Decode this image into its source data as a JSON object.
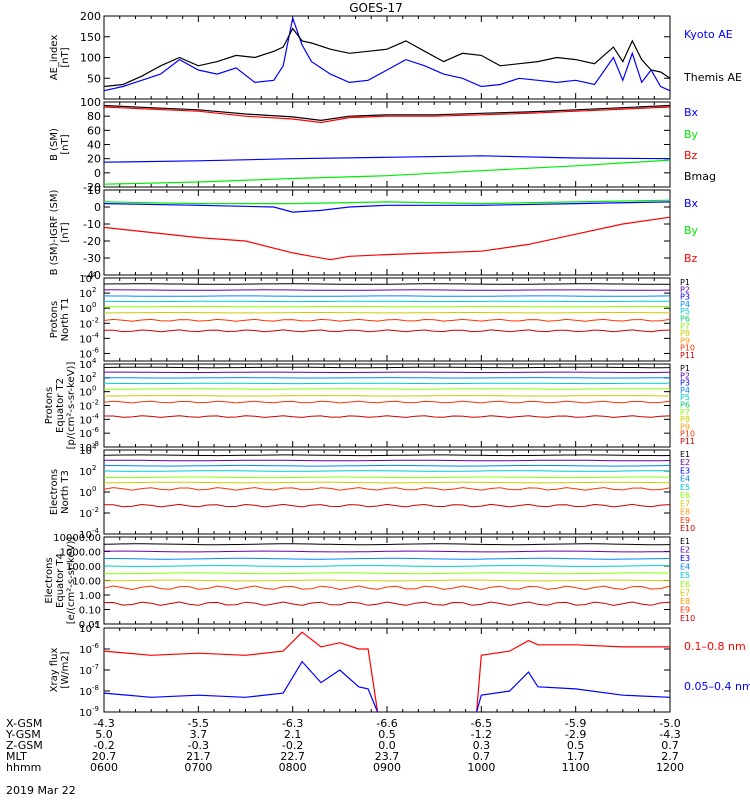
{
  "title": "GOES-17",
  "date": "2019 Mar 22",
  "colors": {
    "black": "#000000",
    "blue": "#0000ff",
    "green": "#00ee00",
    "red": "#ff0000",
    "p_scale": [
      "#000000",
      "#6600aa",
      "#0000ff",
      "#0088ff",
      "#00cccc",
      "#00cc66",
      "#88ff00",
      "#cccc00",
      "#ff9900",
      "#ff3300",
      "#cc0000"
    ]
  },
  "time_axis": {
    "rows": [
      {
        "label": "X-GSM",
        "values": [
          "-4.3",
          "-5.5",
          "-6.3",
          "-6.6",
          "-6.5",
          "-5.9",
          "-5.0"
        ]
      },
      {
        "label": "Y-GSM",
        "values": [
          "5.0",
          "3.7",
          "2.1",
          "0.5",
          "-1.2",
          "-2.9",
          "-4.3"
        ]
      },
      {
        "label": "Z-GSM",
        "values": [
          "-0.2",
          "-0.3",
          "-0.2",
          "0.0",
          "0.3",
          "0.5",
          "0.7"
        ]
      },
      {
        "label": "MLT",
        "values": [
          "20.7",
          "21.7",
          "22.7",
          "23.7",
          "0.7",
          "1.7",
          "2.7"
        ]
      },
      {
        "label": "hhmm",
        "values": [
          "0600",
          "0700",
          "0800",
          "0900",
          "1000",
          "1100",
          "1200"
        ]
      }
    ]
  },
  "chart_data": [
    {
      "type": "line",
      "ylabel": [
        "AE_index",
        "[nT]"
      ],
      "ylim": [
        0,
        200
      ],
      "yticks": [
        "200",
        "150",
        "100",
        "50"
      ],
      "series": [
        {
          "name": "Kyoto AE",
          "color": "#0000ff",
          "x": [
            6.0,
            6.2,
            6.4,
            6.6,
            6.8,
            7.0,
            7.2,
            7.4,
            7.6,
            7.8,
            7.9,
            8.0,
            8.1,
            8.2,
            8.4,
            8.6,
            8.8,
            9.0,
            9.2,
            9.4,
            9.6,
            9.8,
            10.0,
            10.2,
            10.4,
            10.6,
            10.8,
            11.0,
            11.2,
            11.4,
            11.5,
            11.6,
            11.7,
            11.8,
            11.9,
            12.0
          ],
          "y": [
            20,
            30,
            45,
            60,
            95,
            70,
            60,
            75,
            40,
            45,
            80,
            195,
            130,
            90,
            60,
            40,
            45,
            70,
            95,
            80,
            60,
            50,
            30,
            35,
            50,
            45,
            40,
            45,
            35,
            100,
            45,
            110,
            40,
            70,
            30,
            20
          ]
        },
        {
          "name": "Themis AE",
          "color": "#000000",
          "x": [
            6.0,
            6.2,
            6.4,
            6.6,
            6.8,
            7.0,
            7.2,
            7.4,
            7.6,
            7.8,
            7.9,
            8.0,
            8.1,
            8.2,
            8.4,
            8.6,
            8.8,
            9.0,
            9.2,
            9.4,
            9.6,
            9.8,
            10.0,
            10.2,
            10.4,
            10.6,
            10.8,
            11.0,
            11.2,
            11.4,
            11.5,
            11.6,
            11.7,
            11.8,
            11.9,
            12.0
          ],
          "y": [
            30,
            35,
            55,
            80,
            100,
            80,
            90,
            105,
            100,
            115,
            125,
            170,
            140,
            135,
            120,
            110,
            115,
            120,
            140,
            115,
            90,
            110,
            105,
            80,
            85,
            90,
            100,
            95,
            85,
            125,
            90,
            140,
            95,
            70,
            65,
            50
          ]
        }
      ]
    },
    {
      "type": "line",
      "ylabel": [
        "B (SM)",
        "[nT]"
      ],
      "ylim": [
        -20,
        100
      ],
      "yticks": [
        "100",
        "80",
        "60",
        "40",
        "20",
        "0",
        "-20"
      ],
      "series": [
        {
          "name": "Bx",
          "color": "#0000ff",
          "x": [
            6,
            7,
            8,
            9,
            10,
            11,
            12
          ],
          "y": [
            15,
            17,
            20,
            22,
            24,
            21,
            20
          ]
        },
        {
          "name": "By",
          "color": "#00ee00",
          "x": [
            6,
            7,
            8,
            9,
            10,
            11,
            12
          ],
          "y": [
            -16,
            -13,
            -8,
            -4,
            3,
            10,
            18
          ]
        },
        {
          "name": "Bz",
          "color": "#ff0000",
          "x": [
            6,
            6.5,
            7,
            7.5,
            8,
            8.3,
            8.6,
            9,
            9.5,
            10,
            10.5,
            11,
            11.5,
            12
          ],
          "y": [
            93,
            90,
            87,
            80,
            76,
            71,
            78,
            80,
            80,
            82,
            84,
            87,
            90,
            93
          ]
        },
        {
          "name": "Bmag",
          "color": "#000000",
          "x": [
            6,
            6.5,
            7,
            7.5,
            8,
            8.3,
            8.6,
            9,
            9.5,
            10,
            10.5,
            11,
            11.5,
            12
          ],
          "y": [
            95,
            92,
            89,
            83,
            79,
            74,
            80,
            82,
            82,
            84,
            86,
            89,
            92,
            95
          ]
        }
      ]
    },
    {
      "type": "line",
      "ylabel": [
        "B (SM)-IGRF (SM)",
        "[nT]"
      ],
      "ylim": [
        -40,
        10
      ],
      "yticks": [
        "10",
        "0",
        "-10",
        "-20",
        "-30",
        "-40"
      ],
      "series": [
        {
          "name": "Bx",
          "color": "#0000ff",
          "x": [
            6,
            7,
            7.8,
            8,
            8.3,
            8.6,
            9,
            10,
            11,
            12
          ],
          "y": [
            2,
            1,
            0,
            -3,
            -2,
            0,
            1,
            1,
            2,
            3
          ]
        },
        {
          "name": "By",
          "color": "#00ee00",
          "x": [
            6,
            7,
            8,
            9,
            10,
            11,
            12
          ],
          "y": [
            3,
            2,
            2,
            3,
            2,
            3,
            4
          ]
        },
        {
          "name": "Bz",
          "color": "#ff0000",
          "x": [
            6,
            6.5,
            7,
            7.5,
            8,
            8.2,
            8.4,
            8.6,
            9,
            9.5,
            10,
            10.5,
            11,
            11.5,
            12
          ],
          "y": [
            -12,
            -15,
            -18,
            -20,
            -27,
            -29,
            -31,
            -29,
            -28,
            -27,
            -26,
            -22,
            -16,
            -10,
            -6
          ]
        }
      ]
    },
    {
      "type": "line",
      "ylabel": [
        "Protons",
        "North T1"
      ],
      "ylog": true,
      "ylim_exp": [
        -7,
        4
      ],
      "yticks_exp": [
        4,
        2,
        0,
        -2,
        -4,
        -6
      ],
      "legend": [
        "P1",
        "P2",
        "P3",
        "P4",
        "P5",
        "P6",
        "P7",
        "P8",
        "P9",
        "P10",
        "P11"
      ],
      "levels_exp": [
        3.2,
        2.4,
        1.6,
        0.9,
        0.2,
        -0.6,
        -1.6,
        -3.0
      ]
    },
    {
      "type": "line",
      "ylabel": [
        "Protons",
        "Equator T2",
        "[p/(cm²-s-sr-keV)]"
      ],
      "ylog": true,
      "ylim_exp": [
        -8,
        4
      ],
      "yticks_exp": [
        4,
        2,
        0,
        -2,
        -4,
        -6,
        -8
      ],
      "legend": [
        "P1",
        "P2",
        "P3",
        "P4",
        "P5",
        "P6",
        "P7",
        "P8",
        "P9",
        "P10",
        "P11"
      ],
      "levels_exp": [
        3.5,
        2.8,
        2.0,
        1.2,
        0.4,
        -0.6,
        -1.5,
        -3.6
      ]
    },
    {
      "type": "line",
      "ylabel": [
        "Electrons",
        "North T3"
      ],
      "ylog": true,
      "ylim_exp": [
        -4,
        4
      ],
      "yticks_exp": [
        4,
        2,
        0,
        -2,
        -4
      ],
      "legend": [
        "E1",
        "E2",
        "E3",
        "E4",
        "E5",
        "E6",
        "E7",
        "E8",
        "E9",
        "E10"
      ],
      "levels_exp": [
        3.5,
        3.0,
        2.5,
        2.0,
        1.4,
        0.9,
        0.3,
        -1.3
      ]
    },
    {
      "type": "line",
      "ylabel": [
        "Electrons",
        "Equator T4",
        "[e/(cm²-s-sr-keV)]"
      ],
      "ylog": true,
      "ylim_exp": [
        -2,
        4
      ],
      "yticks": [
        "10000.00",
        "1000.00",
        "100.00",
        "10.00",
        "1.00",
        "0.10",
        "0.01"
      ],
      "yticks_exp": [
        4,
        3,
        2,
        1,
        0,
        -1,
        -2
      ],
      "legend": [
        "E1",
        "E2",
        "E3",
        "E4",
        "E5",
        "E6",
        "E7",
        "E8",
        "E9",
        "E10"
      ],
      "levels_exp": [
        3.5,
        3.0,
        2.5,
        2.0,
        1.5,
        1.0,
        0.5,
        -0.6
      ]
    },
    {
      "type": "line",
      "ylabel": [
        "Xray flux",
        "[W/m2]"
      ],
      "ylog": true,
      "ylim_exp": [
        -9,
        -5
      ],
      "yticks_exp": [
        -5,
        -6,
        -7,
        -8,
        -9
      ],
      "series": [
        {
          "name": "0.1-0.8 nm",
          "color": "#ff0000",
          "x": [
            6,
            6.5,
            7,
            7.5,
            7.9,
            8.1,
            8.3,
            8.5,
            8.7,
            8.8,
            8.9
          ],
          "y_exp": [
            -6.1,
            -6.3,
            -6.2,
            -6.3,
            -6.1,
            -5.2,
            -5.9,
            -5.7,
            -6.0,
            -6.0,
            -9.0
          ]
        },
        {
          "name": "0.1-0.8 nm",
          "color": "#ff0000",
          "x": [
            9.95,
            10.0,
            10.3,
            10.5,
            10.6,
            11,
            11.5,
            12
          ],
          "y_exp": [
            -9.0,
            -6.3,
            -6.1,
            -5.6,
            -5.8,
            -5.8,
            -5.9,
            -5.9
          ]
        },
        {
          "name": "0.05-0.4 nm",
          "color": "#0000ff",
          "x": [
            6,
            6.5,
            7,
            7.5,
            7.9,
            8.1,
            8.3,
            8.5,
            8.7,
            8.8,
            8.9
          ],
          "y_exp": [
            -8.1,
            -8.3,
            -8.2,
            -8.3,
            -8.1,
            -6.6,
            -7.6,
            -7.0,
            -7.8,
            -7.9,
            -9.0
          ]
        },
        {
          "name": "0.05-0.4 nm",
          "color": "#0000ff",
          "x": [
            9.95,
            10.0,
            10.3,
            10.5,
            10.6,
            11,
            11.5,
            12
          ],
          "y_exp": [
            -9.0,
            -8.2,
            -8.0,
            -7.1,
            -7.8,
            -7.9,
            -8.2,
            -8.3
          ]
        }
      ],
      "legend": [
        "0.1–0.8 nm",
        "0.05–0.4 nm"
      ]
    }
  ]
}
